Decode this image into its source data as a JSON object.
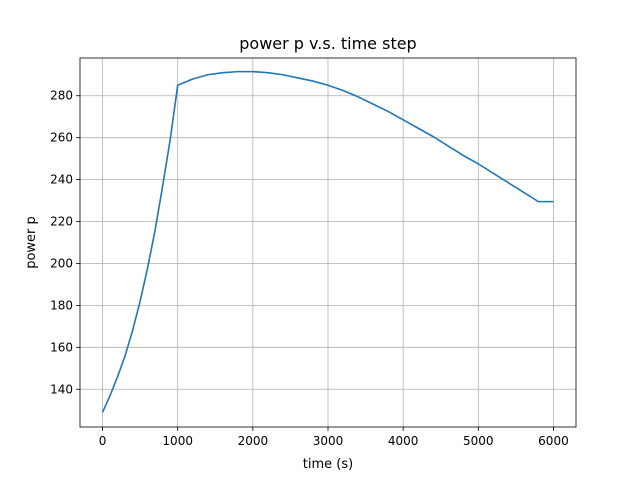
{
  "chart_data": {
    "type": "line",
    "title": "power p v.s. time step",
    "xlabel": "time (s)",
    "ylabel": "power p",
    "xlim": [
      -300,
      6300
    ],
    "ylim": [
      122,
      298
    ],
    "xticks": [
      0,
      1000,
      2000,
      3000,
      4000,
      5000,
      6000
    ],
    "xtick_labels": [
      "0",
      "1000",
      "2000",
      "3000",
      "4000",
      "5000",
      "6000"
    ],
    "yticks": [
      140,
      160,
      180,
      200,
      220,
      240,
      260,
      280
    ],
    "ytick_labels": [
      "140",
      "160",
      "180",
      "200",
      "220",
      "240",
      "260",
      "280"
    ],
    "grid": true,
    "series": [
      {
        "color": "#1f77b4",
        "x": [
          0,
          100,
          200,
          300,
          400,
          500,
          600,
          700,
          800,
          900,
          1000,
          1200,
          1400,
          1600,
          1800,
          2000,
          2200,
          2400,
          2600,
          2800,
          3000,
          3200,
          3400,
          3600,
          3800,
          4000,
          4200,
          4400,
          4600,
          4800,
          5000,
          5200,
          5400,
          5600,
          5800,
          6000
        ],
        "y": [
          129,
          137,
          146,
          156,
          168,
          182,
          198,
          216,
          237,
          259,
          285,
          288,
          290,
          291,
          291.5,
          291.5,
          291,
          290,
          288.5,
          287,
          285,
          282.5,
          279.5,
          276,
          272.5,
          268.5,
          264.5,
          260.5,
          256,
          251.5,
          247.5,
          243,
          238.5,
          234,
          229.5,
          229.5
        ]
      }
    ]
  }
}
